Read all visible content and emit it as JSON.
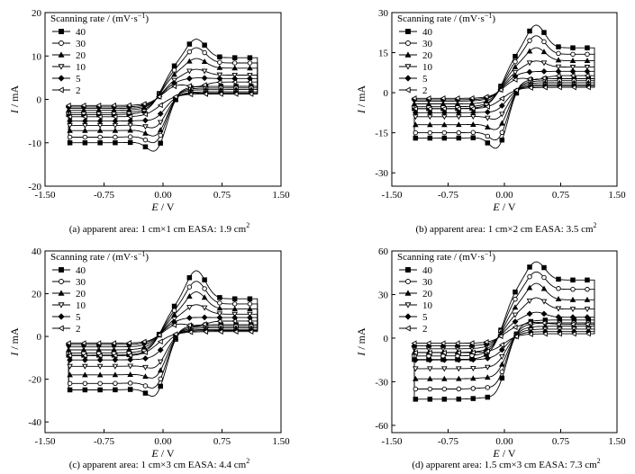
{
  "legend_title": "Scanning rate / (mV·s",
  "legend_title_sup": "−1",
  "legend_title_close": ")",
  "xlabel_var": "E",
  "xlabel_unit": " / V",
  "ylabel_var": "I",
  "ylabel_unit": " / mA",
  "series_names": [
    "40",
    "30",
    "20",
    "10",
    "5",
    "2"
  ],
  "chart_data": [
    {
      "type": "line",
      "panel": "a",
      "caption": "(a) apparent area: 1 cm×1 cm    EASA: 1.9 cm",
      "caption_sup": "2",
      "xlim": [
        -1.5,
        1.5
      ],
      "ylim": [
        -20,
        20
      ],
      "xticks": [
        "-1.50",
        "-0.75",
        "0.00",
        "0.75",
        "1.50"
      ],
      "xtick_values": [
        -1.5,
        -0.75,
        0,
        0.75,
        1.5
      ],
      "yticks": [
        "20",
        "10",
        "0",
        "-10",
        "-20"
      ],
      "ytick_values": [
        20,
        10,
        0,
        -10,
        -20
      ],
      "legend": "top-left",
      "series": [
        {
          "name": "40",
          "ipa": 14.0,
          "ipc": -15.5,
          "plat": 12.0,
          "bas": -10.0
        },
        {
          "name": "30",
          "ipa": 12.0,
          "ipc": -13.0,
          "plat": 10.5,
          "bas": -8.7
        },
        {
          "name": "20",
          "ipa": 9.5,
          "ipc": -11.0,
          "plat": 9.0,
          "bas": -7.2
        },
        {
          "name": "10",
          "ipa": 7.0,
          "ipc": -8.5,
          "plat": 7.0,
          "bas": -6.0
        },
        {
          "name": "5",
          "ipa": 5.0,
          "ipc": -6.0,
          "plat": 6.0,
          "bas": -5.0
        },
        {
          "name": "2",
          "ipa": 3.0,
          "ipc": -3.5,
          "plat": 5.0,
          "bas": -4.0
        }
      ]
    },
    {
      "type": "line",
      "panel": "b",
      "caption": "(b) apparent area: 1 cm×2 cm    EASA: 3.5 cm",
      "caption_sup": "2",
      "xlim": [
        -1.5,
        1.5
      ],
      "ylim": [
        -35,
        30
      ],
      "xticks": [
        "-1.50",
        "-0.75",
        "0.00",
        "0.75",
        "1.50"
      ],
      "xtick_values": [
        -1.5,
        -0.75,
        0,
        0.75,
        1.5
      ],
      "yticks": [
        "30",
        "15",
        "0",
        "-15",
        "-30"
      ],
      "ytick_values": [
        30,
        15,
        0,
        -15,
        -30
      ],
      "legend": "top-left",
      "series": [
        {
          "name": "40",
          "ipa": 25.5,
          "ipc": -27.0,
          "plat": 21.0,
          "bas": -17.0
        },
        {
          "name": "30",
          "ipa": 21.5,
          "ipc": -23.0,
          "plat": 18.0,
          "bas": -15.0
        },
        {
          "name": "20",
          "ipa": 17.0,
          "ipc": -18.0,
          "plat": 15.0,
          "bas": -12.0
        },
        {
          "name": "10",
          "ipa": 12.0,
          "ipc": -13.0,
          "plat": 12.0,
          "bas": -9.0
        },
        {
          "name": "5",
          "ipa": 8.0,
          "ipc": -9.0,
          "plat": 10.0,
          "bas": -7.5
        },
        {
          "name": "2",
          "ipa": 5.0,
          "ipc": -5.5,
          "plat": 8.0,
          "bas": -6.0
        }
      ]
    },
    {
      "type": "line",
      "panel": "c",
      "caption": "(c) apparent area: 1 cm×3 cm    EASA: 4.4 cm",
      "caption_sup": "2",
      "xlim": [
        -1.5,
        1.5
      ],
      "ylim": [
        -45,
        40
      ],
      "xticks": [
        "-1.50",
        "-0.75",
        "0.00",
        "0.75",
        "1.50"
      ],
      "xtick_values": [
        -1.5,
        -0.75,
        0,
        0.75,
        1.5
      ],
      "yticks": [
        "40",
        "20",
        "0",
        "-20",
        "-40"
      ],
      "ytick_values": [
        40,
        20,
        0,
        -20,
        -40
      ],
      "legend": "top-left",
      "series": [
        {
          "name": "40",
          "ipa": 31.0,
          "ipc": -36.0,
          "plat": 22.0,
          "bas": -25.0
        },
        {
          "name": "30",
          "ipa": 26.0,
          "ipc": -31.0,
          "plat": 19.0,
          "bas": -22.0
        },
        {
          "name": "20",
          "ipa": 21.0,
          "ipc": -25.0,
          "plat": 16.0,
          "bas": -18.0
        },
        {
          "name": "10",
          "ipa": 15.0,
          "ipc": -19.0,
          "plat": 13.0,
          "bas": -14.0
        },
        {
          "name": "5",
          "ipa": 9.0,
          "ipc": -12.0,
          "plat": 11.0,
          "bas": -11.0
        },
        {
          "name": "2",
          "ipa": 5.0,
          "ipc": -7.0,
          "plat": 9.0,
          "bas": -9.0
        }
      ]
    },
    {
      "type": "line",
      "panel": "d",
      "caption": "(d) apparent area: 1.5 cm×3 cm    EASA: 7.3 cm",
      "caption_sup": "2",
      "xlim": [
        -1.5,
        1.5
      ],
      "ylim": [
        -65,
        60
      ],
      "xticks": [
        "-1.50",
        "-0.75",
        "0.00",
        "0.75",
        "1.50"
      ],
      "xtick_values": [
        -1.5,
        -0.75,
        0,
        0.75,
        1.5
      ],
      "yticks": [
        "60",
        "30",
        "0",
        "-30",
        "-60"
      ],
      "ytick_values": [
        60,
        30,
        0,
        -30,
        -60
      ],
      "legend": "top-left",
      "series": [
        {
          "name": "40",
          "ipa": 53.0,
          "ipc": -50.0,
          "plat": 50.0,
          "bas": -42.0
        },
        {
          "name": "30",
          "ipa": 46.0,
          "ipc": -42.0,
          "plat": 42.0,
          "bas": -35.0
        },
        {
          "name": "20",
          "ipa": 38.0,
          "ipc": -33.0,
          "plat": 33.0,
          "bas": -28.0
        },
        {
          "name": "10",
          "ipa": 28.0,
          "ipc": -24.0,
          "plat": 25.0,
          "bas": -21.0
        },
        {
          "name": "5",
          "ipa": 18.0,
          "ipc": -16.0,
          "plat": 18.0,
          "bas": -15.0
        },
        {
          "name": "2",
          "ipa": 11.0,
          "ipc": -10.0,
          "plat": 12.0,
          "bas": -10.0
        }
      ]
    }
  ]
}
